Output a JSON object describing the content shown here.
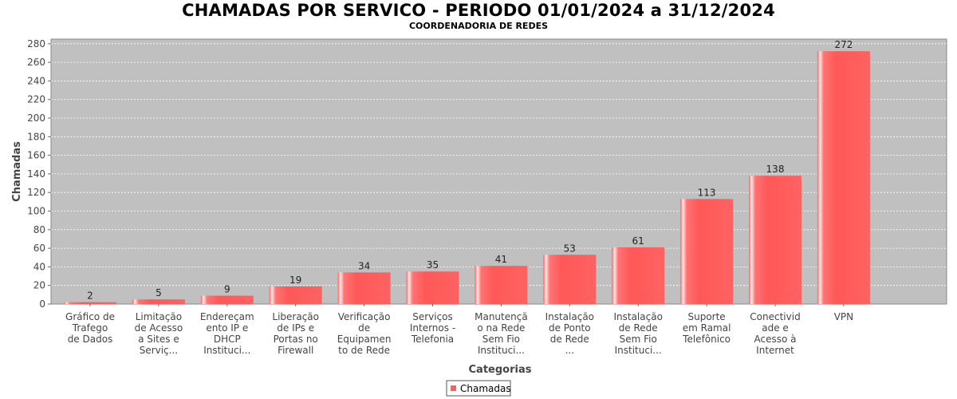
{
  "chart_data": {
    "type": "bar",
    "title": "CHAMADAS POR SERVICO - PERIODO 01/01/2024 a 31/12/2024",
    "subtitle": "COORDENADORIA DE REDES",
    "xlabel": "Categorias",
    "ylabel": "Chamadas",
    "ylim": [
      0,
      285
    ],
    "yticks": [
      0,
      20,
      40,
      60,
      80,
      100,
      120,
      140,
      160,
      180,
      200,
      220,
      240,
      260,
      280
    ],
    "grid": true,
    "legend_position": "bottom-center",
    "bar_color": "#ff5e5e",
    "plot_background": "#c0c0c0",
    "categories": [
      [
        "Gráfico de",
        "Trafego",
        "de Dados"
      ],
      [
        "Limitação",
        "de Acesso",
        "a Sites e",
        "Serviç..."
      ],
      [
        "Endereçam",
        "ento IP e",
        "DHCP",
        "Instituci..."
      ],
      [
        "Liberação",
        "de IPs e",
        "Portas no",
        "Firewall"
      ],
      [
        "Verificação",
        "de",
        "Equipamen",
        "to de Rede"
      ],
      [
        "Serviços",
        "Internos -",
        "Telefonia"
      ],
      [
        "Manutençã",
        "o na Rede",
        "Sem Fio",
        "Instituci..."
      ],
      [
        "Instalação",
        "de Ponto",
        "de Rede",
        "..."
      ],
      [
        "Instalação",
        "de Rede",
        "Sem Fio",
        "Instituci..."
      ],
      [
        "Suporte",
        "em Ramal",
        "Telefônico"
      ],
      [
        "Conectivid",
        "ade e",
        "Acesso à",
        "Internet"
      ],
      [
        "VPN"
      ]
    ],
    "series": [
      {
        "name": "Chamadas",
        "values": [
          2,
          5,
          9,
          19,
          34,
          35,
          41,
          53,
          61,
          113,
          138,
          272
        ]
      }
    ]
  }
}
